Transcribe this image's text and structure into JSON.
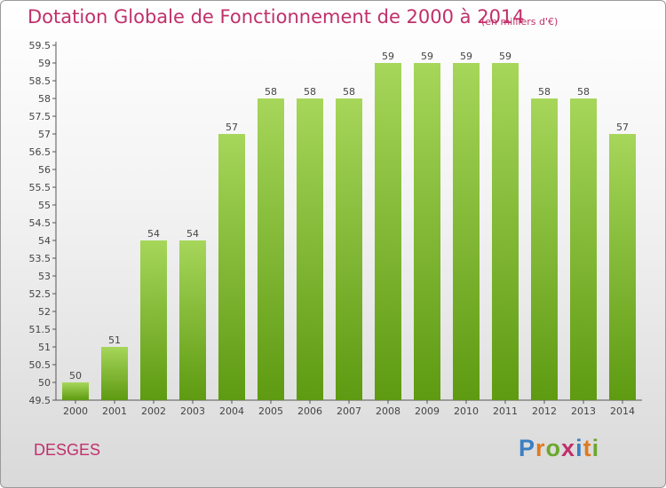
{
  "header": {
    "title": "Dotation Globale de Fonctionnement de 2000 à 2014",
    "unit": "(en milliers d'€)"
  },
  "commune": "DESGES",
  "logo": {
    "text": "Proxiti",
    "letters": [
      {
        "ch": "P",
        "color": "#3a7fc4"
      },
      {
        "ch": "r",
        "color": "#e07a20"
      },
      {
        "ch": "o",
        "color": "#6aa82e"
      },
      {
        "ch": "x",
        "color": "#c0306a"
      },
      {
        "ch": "i",
        "color": "#3a7fc4"
      },
      {
        "ch": "t",
        "color": "#e07a20"
      },
      {
        "ch": "i",
        "color": "#6aa82e"
      }
    ]
  },
  "chart_data": {
    "type": "bar",
    "title": "Dotation Globale de Fonctionnement de 2000 à 2014",
    "subtitle": "(en milliers d'€)",
    "xlabel": "",
    "ylabel": "",
    "categories": [
      "2000",
      "2001",
      "2002",
      "2003",
      "2004",
      "2005",
      "2006",
      "2007",
      "2008",
      "2009",
      "2010",
      "2011",
      "2012",
      "2013",
      "2014"
    ],
    "values": [
      50,
      51,
      54,
      54,
      57,
      58,
      58,
      58,
      59,
      59,
      59,
      59,
      58,
      58,
      57
    ],
    "ylim": [
      49.5,
      59.5
    ],
    "ytick_step": 0.5,
    "yticks": [
      "49.5",
      "50",
      "50.5",
      "51",
      "51.5",
      "52",
      "52.5",
      "53",
      "53.5",
      "54",
      "54.5",
      "55",
      "55.5",
      "56",
      "56.5",
      "57",
      "57.5",
      "58",
      "58.5",
      "59",
      "59.5"
    ],
    "grid": false,
    "colors": {
      "bar_light": "#a6d65a",
      "bar_dark": "#5e9a12",
      "axis": "#555555",
      "label": "#444444"
    }
  }
}
